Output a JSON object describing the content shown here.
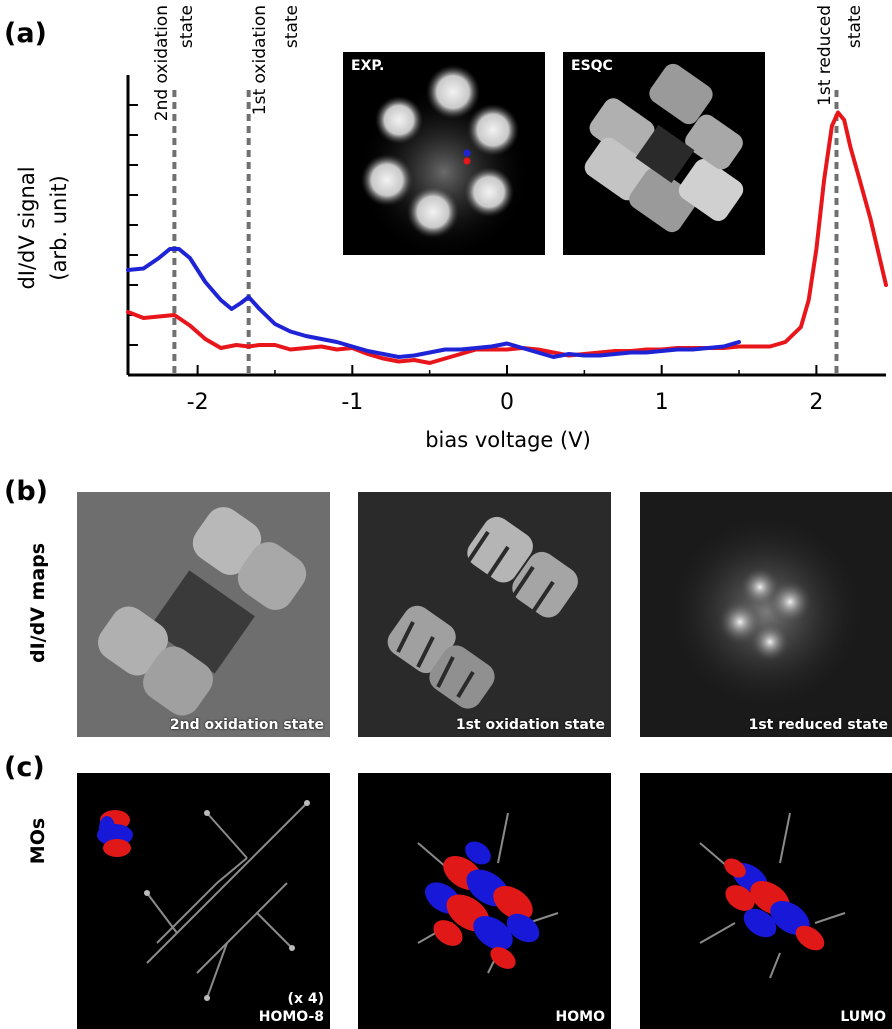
{
  "panels": {
    "a": {
      "letter": "(a)"
    },
    "b": {
      "letter": "(b)",
      "row_label": "dI/dV maps"
    },
    "c": {
      "letter": "(c)",
      "row_label": "MOs"
    }
  },
  "panel_a": {
    "inset_exp_label": "EXP.",
    "inset_esqc_label": "ESQC",
    "state_labels": {
      "ox2_line1": "2nd oxidation",
      "ox2_line2": "state",
      "ox1_line1": "1st oxidation",
      "ox1_line2": "state",
      "red1_line1": "1st reduced",
      "red1_line2": "state"
    }
  },
  "chart_data": {
    "type": "line",
    "xlabel": "bias voltage (V)",
    "ylabel": "dI/dV signal (arb. unit)",
    "ylabel_line1": "dI/dV signal",
    "ylabel_line2": "(arb. unit)",
    "xlim": [
      -2.45,
      2.45
    ],
    "ylim": [
      0,
      10
    ],
    "x_ticks": [
      -2,
      -1,
      0,
      1,
      2
    ],
    "x_tick_labels": [
      "-2",
      "-1",
      "0",
      "1",
      "2"
    ],
    "y_ticks": [
      1,
      2,
      3,
      4,
      5,
      6,
      7,
      8,
      9
    ],
    "reference_lines_x": [
      -2.15,
      -1.67,
      2.13
    ],
    "series": [
      {
        "color": "#1f23d6",
        "x": [
          -2.45,
          -2.35,
          -2.25,
          -2.18,
          -2.12,
          -2.05,
          -1.95,
          -1.85,
          -1.78,
          -1.72,
          -1.67,
          -1.6,
          -1.5,
          -1.4,
          -1.3,
          -1.2,
          -1.1,
          -1.0,
          -0.9,
          -0.8,
          -0.7,
          -0.6,
          -0.5,
          -0.4,
          -0.3,
          -0.2,
          -0.1,
          0.0,
          0.1,
          0.2,
          0.3,
          0.4,
          0.5,
          0.6,
          0.7,
          0.8,
          0.9,
          1.0,
          1.1,
          1.2,
          1.3,
          1.4,
          1.5
        ],
        "y": [
          3.5,
          3.55,
          3.9,
          4.2,
          4.2,
          3.9,
          3.1,
          2.5,
          2.2,
          2.4,
          2.6,
          2.2,
          1.7,
          1.45,
          1.3,
          1.2,
          1.1,
          0.95,
          0.8,
          0.7,
          0.6,
          0.65,
          0.75,
          0.85,
          0.85,
          0.9,
          0.95,
          1.05,
          0.9,
          0.75,
          0.6,
          0.7,
          0.65,
          0.65,
          0.7,
          0.75,
          0.75,
          0.8,
          0.85,
          0.85,
          0.9,
          0.95,
          1.1
        ]
      },
      {
        "color": "#e8161b",
        "x": [
          -2.45,
          -2.35,
          -2.25,
          -2.15,
          -2.05,
          -1.95,
          -1.85,
          -1.75,
          -1.67,
          -1.6,
          -1.5,
          -1.4,
          -1.3,
          -1.2,
          -1.1,
          -1.0,
          -0.9,
          -0.8,
          -0.7,
          -0.6,
          -0.5,
          -0.4,
          -0.3,
          -0.2,
          -0.1,
          0.0,
          0.1,
          0.2,
          0.3,
          0.4,
          0.5,
          0.6,
          0.7,
          0.8,
          0.9,
          1.0,
          1.1,
          1.2,
          1.3,
          1.4,
          1.5,
          1.6,
          1.7,
          1.8,
          1.9,
          1.95,
          2.0,
          2.05,
          2.1,
          2.14,
          2.18,
          2.22,
          2.28,
          2.35,
          2.45
        ],
        "y": [
          2.1,
          1.9,
          1.95,
          2.0,
          1.65,
          1.2,
          0.9,
          1.0,
          0.95,
          1.0,
          1.0,
          0.85,
          0.9,
          0.95,
          0.85,
          0.9,
          0.7,
          0.55,
          0.45,
          0.5,
          0.4,
          0.55,
          0.7,
          0.85,
          0.85,
          0.85,
          0.9,
          0.85,
          0.75,
          0.65,
          0.7,
          0.75,
          0.8,
          0.8,
          0.85,
          0.85,
          0.9,
          0.9,
          0.9,
          0.9,
          0.95,
          0.95,
          0.95,
          1.1,
          1.6,
          2.5,
          4.2,
          6.5,
          8.3,
          8.75,
          8.5,
          7.6,
          6.5,
          5.2,
          3.0
        ]
      }
    ]
  },
  "panel_b": {
    "captions": [
      "2nd oxidation state",
      "1st oxidation state",
      "1st reduced state"
    ]
  },
  "panel_c": {
    "captions": [
      "HOMO-8",
      "HOMO",
      "LUMO"
    ],
    "scale_note": "(x 4)"
  }
}
